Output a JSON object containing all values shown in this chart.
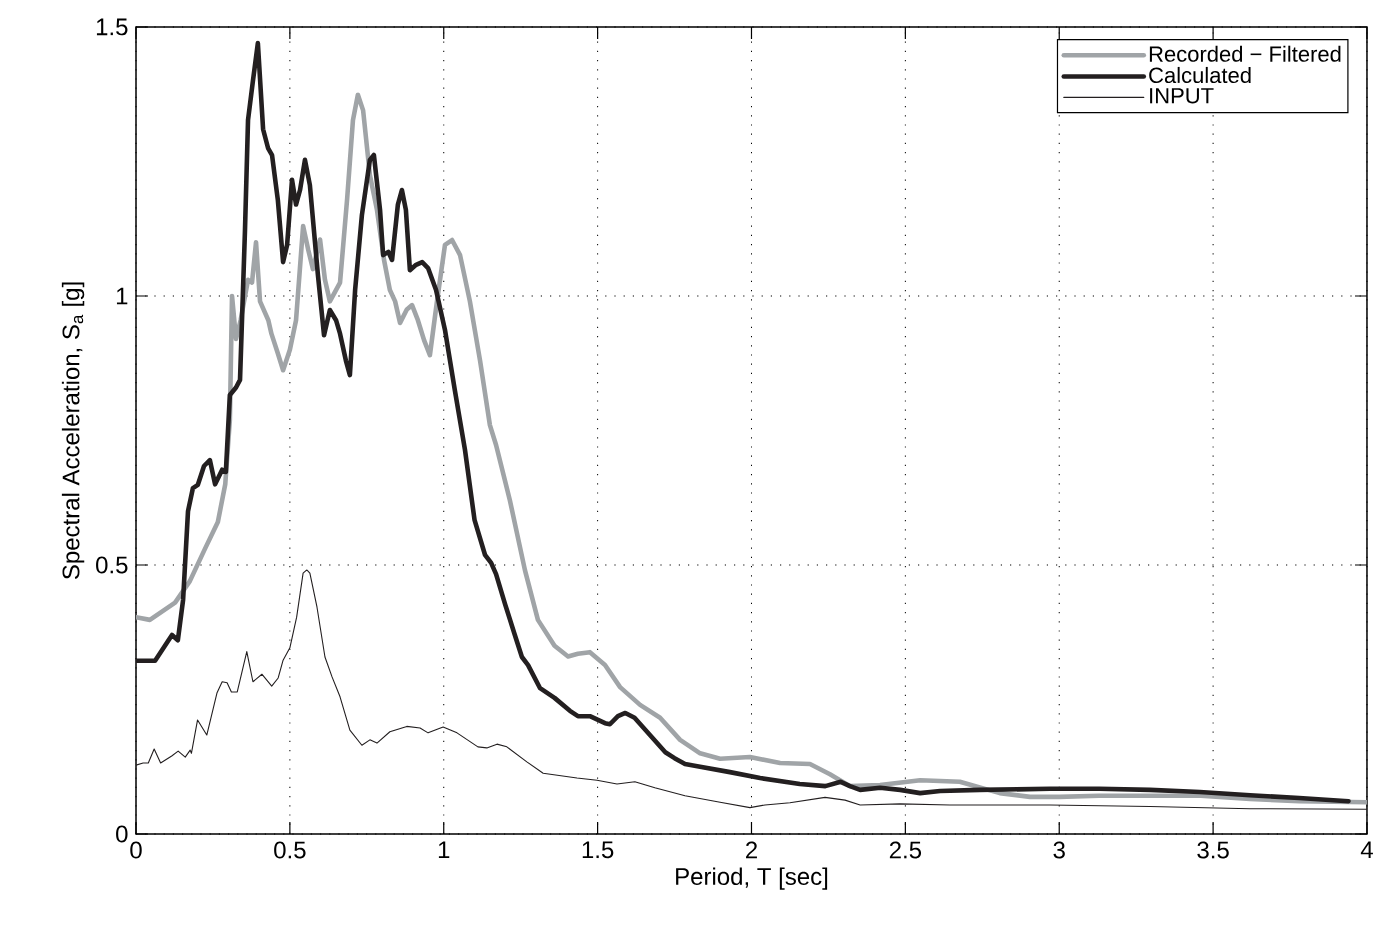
{
  "chart_data": {
    "type": "line",
    "xlabel": "Period, T [sec]",
    "ylabel": "Spectral Acceleration, S$_{a}$ [g]",
    "xlim": [
      0,
      4
    ],
    "ylim": [
      0,
      1.5
    ],
    "xticks": [
      0,
      0.5,
      1,
      1.5,
      2,
      2.5,
      3,
      3.5,
      4
    ],
    "yticks": [
      0,
      0.5,
      1,
      1.5
    ],
    "grid": true,
    "legend": "top right",
    "line_style": "solid",
    "series": [
      {
        "name": "Recorded − Filtered",
        "color": "#a0a4a7",
        "x": [
          0,
          0.045,
          0.127,
          0.175,
          0.224,
          0.266,
          0.29,
          0.305,
          0.312,
          0.325,
          0.34,
          0.364,
          0.377,
          0.39,
          0.403,
          0.43,
          0.44,
          0.46,
          0.478,
          0.5,
          0.52,
          0.543,
          0.56,
          0.575,
          0.598,
          0.614,
          0.63,
          0.663,
          0.686,
          0.705,
          0.721,
          0.738,
          0.76,
          0.783,
          0.806,
          0.825,
          0.842,
          0.858,
          0.88,
          0.897,
          0.916,
          0.936,
          0.955,
          0.978,
          1.004,
          1.027,
          1.053,
          1.085,
          1.118,
          1.15,
          1.17,
          1.215,
          1.264,
          1.306,
          1.36,
          1.404,
          1.436,
          1.475,
          1.524,
          1.573,
          1.638,
          1.703,
          1.768,
          1.833,
          1.898,
          1.995,
          2.093,
          2.19,
          2.255,
          2.32,
          2.418,
          2.548,
          2.677,
          2.807,
          2.905,
          3.0,
          3.13,
          3.295,
          3.46,
          3.62,
          3.78,
          4.0
        ],
        "values": [
          0.403,
          0.398,
          0.43,
          0.47,
          0.53,
          0.58,
          0.65,
          0.77,
          1.0,
          0.92,
          0.955,
          1.03,
          1.025,
          1.1,
          0.99,
          0.955,
          0.93,
          0.895,
          0.862,
          0.9,
          0.955,
          1.13,
          1.085,
          1.05,
          1.105,
          1.03,
          0.99,
          1.025,
          1.18,
          1.327,
          1.374,
          1.345,
          1.225,
          1.16,
          1.067,
          1.011,
          0.99,
          0.95,
          0.975,
          0.983,
          0.955,
          0.918,
          0.89,
          0.99,
          1.095,
          1.104,
          1.076,
          0.99,
          0.88,
          0.76,
          0.723,
          0.62,
          0.49,
          0.398,
          0.35,
          0.33,
          0.335,
          0.338,
          0.314,
          0.273,
          0.24,
          0.216,
          0.175,
          0.15,
          0.14,
          0.143,
          0.132,
          0.13,
          0.111,
          0.089,
          0.091,
          0.1,
          0.097,
          0.076,
          0.069,
          0.069,
          0.071,
          0.071,
          0.071,
          0.065,
          0.061,
          0.059
        ]
      },
      {
        "name": "Calculated",
        "color": "#231f20",
        "x": [
          0,
          0.062,
          0.094,
          0.117,
          0.136,
          0.153,
          0.169,
          0.185,
          0.201,
          0.221,
          0.24,
          0.257,
          0.28,
          0.292,
          0.305,
          0.325,
          0.338,
          0.354,
          0.364,
          0.38,
          0.396,
          0.413,
          0.429,
          0.442,
          0.461,
          0.478,
          0.491,
          0.507,
          0.52,
          0.533,
          0.549,
          0.565,
          0.591,
          0.611,
          0.63,
          0.65,
          0.663,
          0.682,
          0.695,
          0.712,
          0.734,
          0.76,
          0.773,
          0.793,
          0.803,
          0.82,
          0.832,
          0.851,
          0.864,
          0.877,
          0.89,
          0.91,
          0.93,
          0.949,
          0.975,
          1.004,
          1.036,
          1.069,
          1.1,
          1.134,
          1.154,
          1.17,
          1.2,
          1.231,
          1.254,
          1.274,
          1.313,
          1.36,
          1.41,
          1.436,
          1.475,
          1.524,
          1.54,
          1.566,
          1.59,
          1.62,
          1.67,
          1.72,
          1.75,
          1.784,
          1.833,
          1.93,
          2.028,
          2.157,
          2.24,
          2.29,
          2.32,
          2.353,
          2.418,
          2.483,
          2.548,
          2.613,
          2.742,
          2.97,
          3.13,
          3.295,
          3.457,
          3.62,
          3.78,
          3.94
        ],
        "values": [
          0.322,
          0.322,
          0.35,
          0.37,
          0.36,
          0.435,
          0.6,
          0.643,
          0.649,
          0.684,
          0.695,
          0.65,
          0.677,
          0.673,
          0.816,
          0.83,
          0.844,
          1.12,
          1.327,
          1.4,
          1.47,
          1.31,
          1.275,
          1.262,
          1.178,
          1.063,
          1.095,
          1.216,
          1.17,
          1.197,
          1.253,
          1.206,
          1.04,
          0.927,
          0.974,
          0.955,
          0.93,
          0.88,
          0.853,
          1.011,
          1.15,
          1.253,
          1.262,
          1.16,
          1.076,
          1.082,
          1.067,
          1.17,
          1.197,
          1.16,
          1.048,
          1.058,
          1.063,
          1.052,
          1.011,
          0.937,
          0.825,
          0.714,
          0.584,
          0.519,
          0.504,
          0.483,
          0.426,
          0.37,
          0.329,
          0.314,
          0.271,
          0.253,
          0.229,
          0.219,
          0.219,
          0.206,
          0.204,
          0.219,
          0.225,
          0.216,
          0.184,
          0.152,
          0.141,
          0.13,
          0.125,
          0.115,
          0.104,
          0.093,
          0.089,
          0.097,
          0.089,
          0.082,
          0.086,
          0.082,
          0.076,
          0.08,
          0.082,
          0.084,
          0.084,
          0.082,
          0.078,
          0.072,
          0.067,
          0.061
        ]
      },
      {
        "name": "INPUT",
        "color": "#231f20",
        "x": [
          0,
          0.023,
          0.04,
          0.059,
          0.08,
          0.116,
          0.137,
          0.16,
          0.176,
          0.18,
          0.2,
          0.23,
          0.263,
          0.28,
          0.296,
          0.31,
          0.329,
          0.36,
          0.38,
          0.409,
          0.441,
          0.462,
          0.478,
          0.5,
          0.522,
          0.543,
          0.555,
          0.565,
          0.588,
          0.614,
          0.637,
          0.663,
          0.695,
          0.734,
          0.76,
          0.783,
          0.825,
          0.88,
          0.923,
          0.949,
          0.998,
          1.043,
          1.111,
          1.14,
          1.173,
          1.205,
          1.27,
          1.323,
          1.433,
          1.498,
          1.563,
          1.621,
          1.686,
          1.784,
          1.898,
          1.995,
          2.044,
          2.125,
          2.239,
          2.304,
          2.353,
          2.483,
          2.645,
          2.97,
          3.295,
          3.62,
          4.0
        ],
        "values": [
          0.128,
          0.132,
          0.132,
          0.158,
          0.132,
          0.145,
          0.154,
          0.143,
          0.156,
          0.15,
          0.212,
          0.184,
          0.262,
          0.283,
          0.281,
          0.264,
          0.264,
          0.339,
          0.283,
          0.297,
          0.275,
          0.29,
          0.323,
          0.346,
          0.403,
          0.485,
          0.491,
          0.485,
          0.422,
          0.329,
          0.292,
          0.255,
          0.193,
          0.165,
          0.175,
          0.169,
          0.19,
          0.2,
          0.197,
          0.188,
          0.199,
          0.188,
          0.162,
          0.16,
          0.167,
          0.162,
          0.134,
          0.113,
          0.104,
          0.1,
          0.093,
          0.097,
          0.086,
          0.071,
          0.059,
          0.049,
          0.054,
          0.058,
          0.068,
          0.063,
          0.054,
          0.056,
          0.054,
          0.054,
          0.051,
          0.047,
          0.046
        ]
      }
    ]
  }
}
